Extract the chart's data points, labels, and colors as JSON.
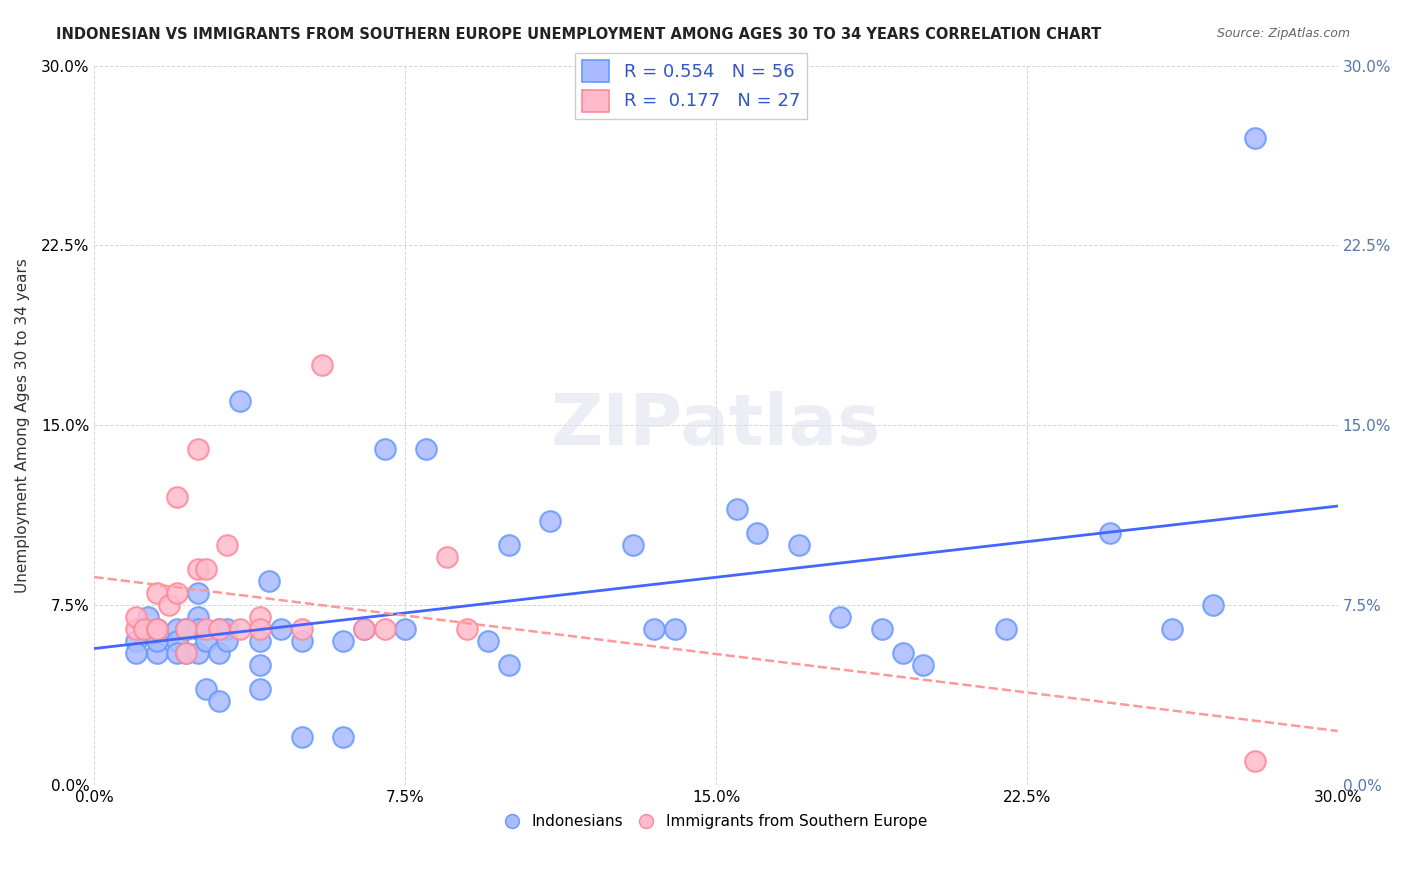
{
  "title": "INDONESIAN VS IMMIGRANTS FROM SOUTHERN EUROPE UNEMPLOYMENT AMONG AGES 30 TO 34 YEARS CORRELATION CHART",
  "source": "Source: ZipAtlas.com",
  "xlabel": "",
  "ylabel": "Unemployment Among Ages 30 to 34 years",
  "xlim": [
    0,
    0.3
  ],
  "ylim": [
    0,
    0.3
  ],
  "xticks": [
    0.0,
    0.075,
    0.15,
    0.225,
    0.3
  ],
  "yticks": [
    0.0,
    0.075,
    0.15,
    0.225,
    0.3
  ],
  "xticklabels": [
    "0.0%",
    "7.5%",
    "15.0%",
    "22.5%",
    "30.0%"
  ],
  "yticklabels": [
    "0.0%",
    "7.5%",
    "15.0%",
    "22.5%",
    "30.0%"
  ],
  "R_blue": 0.554,
  "N_blue": 56,
  "R_pink": 0.177,
  "N_pink": 27,
  "blue_color": "#6699FF",
  "blue_face": "#AABBFF",
  "pink_color": "#FF8899",
  "pink_face": "#FFBBCC",
  "trend_blue": "#4466FF",
  "trend_pink": "#FF9999",
  "blue_x": [
    0.01,
    0.01,
    0.013,
    0.015,
    0.015,
    0.015,
    0.02,
    0.02,
    0.02,
    0.022,
    0.022,
    0.022,
    0.025,
    0.025,
    0.025,
    0.025,
    0.027,
    0.027,
    0.03,
    0.03,
    0.03,
    0.032,
    0.032,
    0.035,
    0.04,
    0.04,
    0.04,
    0.042,
    0.045,
    0.05,
    0.05,
    0.06,
    0.06,
    0.065,
    0.07,
    0.075,
    0.08,
    0.095,
    0.1,
    0.1,
    0.11,
    0.13,
    0.135,
    0.14,
    0.155,
    0.16,
    0.17,
    0.18,
    0.19,
    0.195,
    0.2,
    0.22,
    0.245,
    0.26,
    0.27,
    0.28
  ],
  "blue_y": [
    0.06,
    0.055,
    0.07,
    0.055,
    0.06,
    0.065,
    0.065,
    0.06,
    0.055,
    0.065,
    0.065,
    0.055,
    0.08,
    0.07,
    0.065,
    0.055,
    0.04,
    0.06,
    0.065,
    0.055,
    0.035,
    0.065,
    0.06,
    0.16,
    0.05,
    0.06,
    0.04,
    0.085,
    0.065,
    0.02,
    0.06,
    0.02,
    0.06,
    0.065,
    0.14,
    0.065,
    0.14,
    0.06,
    0.05,
    0.1,
    0.11,
    0.1,
    0.065,
    0.065,
    0.115,
    0.105,
    0.1,
    0.07,
    0.065,
    0.055,
    0.05,
    0.065,
    0.105,
    0.065,
    0.075,
    0.27
  ],
  "pink_x": [
    0.01,
    0.01,
    0.012,
    0.015,
    0.015,
    0.015,
    0.018,
    0.02,
    0.02,
    0.022,
    0.022,
    0.025,
    0.025,
    0.027,
    0.027,
    0.03,
    0.032,
    0.035,
    0.04,
    0.04,
    0.05,
    0.055,
    0.065,
    0.07,
    0.085,
    0.09,
    0.28
  ],
  "pink_y": [
    0.065,
    0.07,
    0.065,
    0.065,
    0.08,
    0.065,
    0.075,
    0.12,
    0.08,
    0.065,
    0.055,
    0.09,
    0.14,
    0.065,
    0.09,
    0.065,
    0.1,
    0.065,
    0.07,
    0.065,
    0.065,
    0.175,
    0.065,
    0.065,
    0.095,
    0.065,
    0.01
  ],
  "watermark": "ZIPatlas",
  "right_tick_color": "#5577AA"
}
